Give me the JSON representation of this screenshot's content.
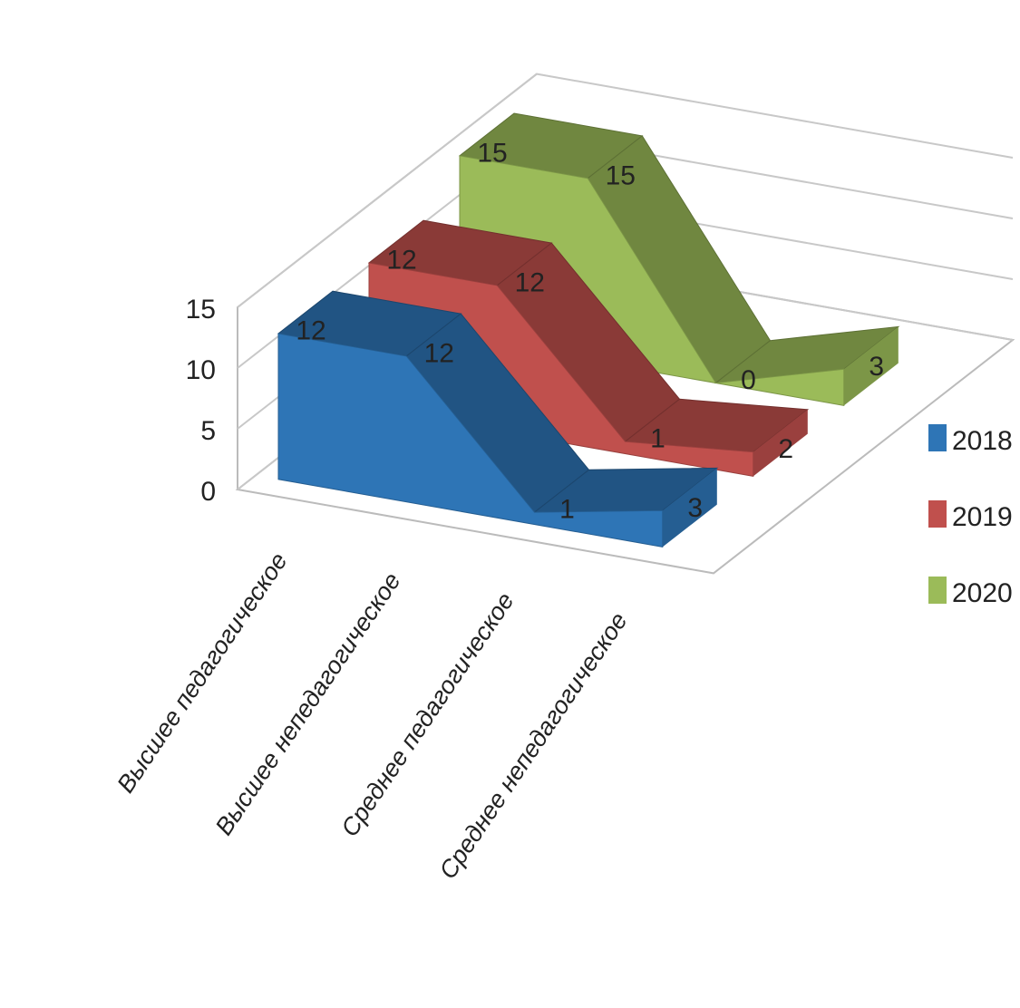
{
  "chart_data": {
    "type": "area",
    "view": "3d",
    "categories": [
      "Высшее педагогическое",
      "Высшее непедагогическое",
      "Среднее педагогическое",
      "Среднее непедагогическое"
    ],
    "series": [
      {
        "name": "2018",
        "values": [
          12,
          12,
          1,
          3
        ],
        "color": "#2e75b6"
      },
      {
        "name": "2019",
        "values": [
          12,
          12,
          1,
          2
        ],
        "color": "#c0504d"
      },
      {
        "name": "2020",
        "values": [
          15,
          15,
          0,
          3
        ],
        "color": "#9bbb59"
      }
    ],
    "ylim": [
      0,
      15
    ],
    "yticks": [
      "0",
      "5",
      "10",
      "15"
    ],
    "grid": true,
    "legend": "right",
    "title": "",
    "xlabel": "",
    "ylabel": ""
  }
}
